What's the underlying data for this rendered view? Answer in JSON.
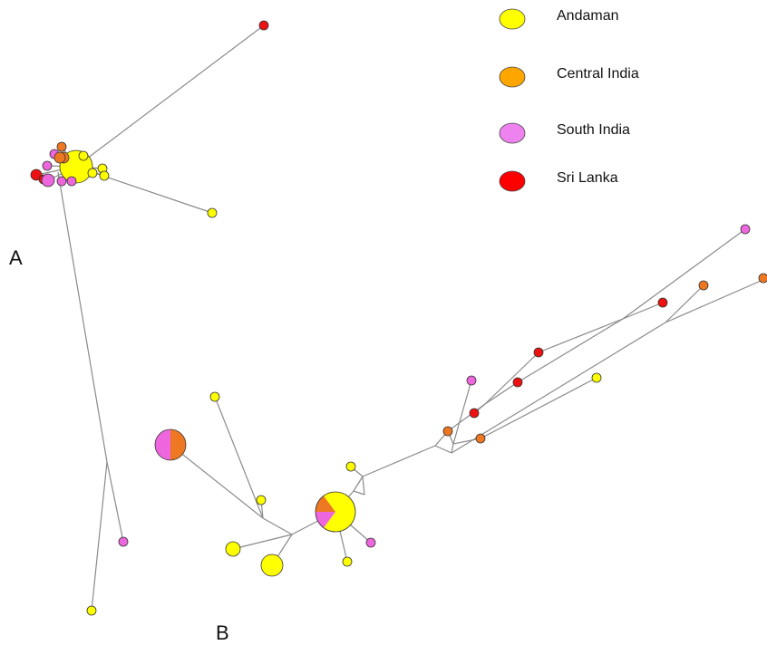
{
  "panels": {
    "a": "A",
    "b": "B"
  },
  "legend": [
    {
      "label": "Andaman",
      "color": "#ffff00"
    },
    {
      "label": "Central India",
      "color": "#ffa500"
    },
    {
      "label": "South India",
      "color": "#ee82ee"
    },
    {
      "label": "Sri Lanka",
      "color": "#ff0000"
    }
  ],
  "node_colors": {
    "Andaman": "#ffff00",
    "Central India": "#ee7722",
    "South India": "#ee66dd",
    "Sri Lanka": "#ee1111"
  }
}
